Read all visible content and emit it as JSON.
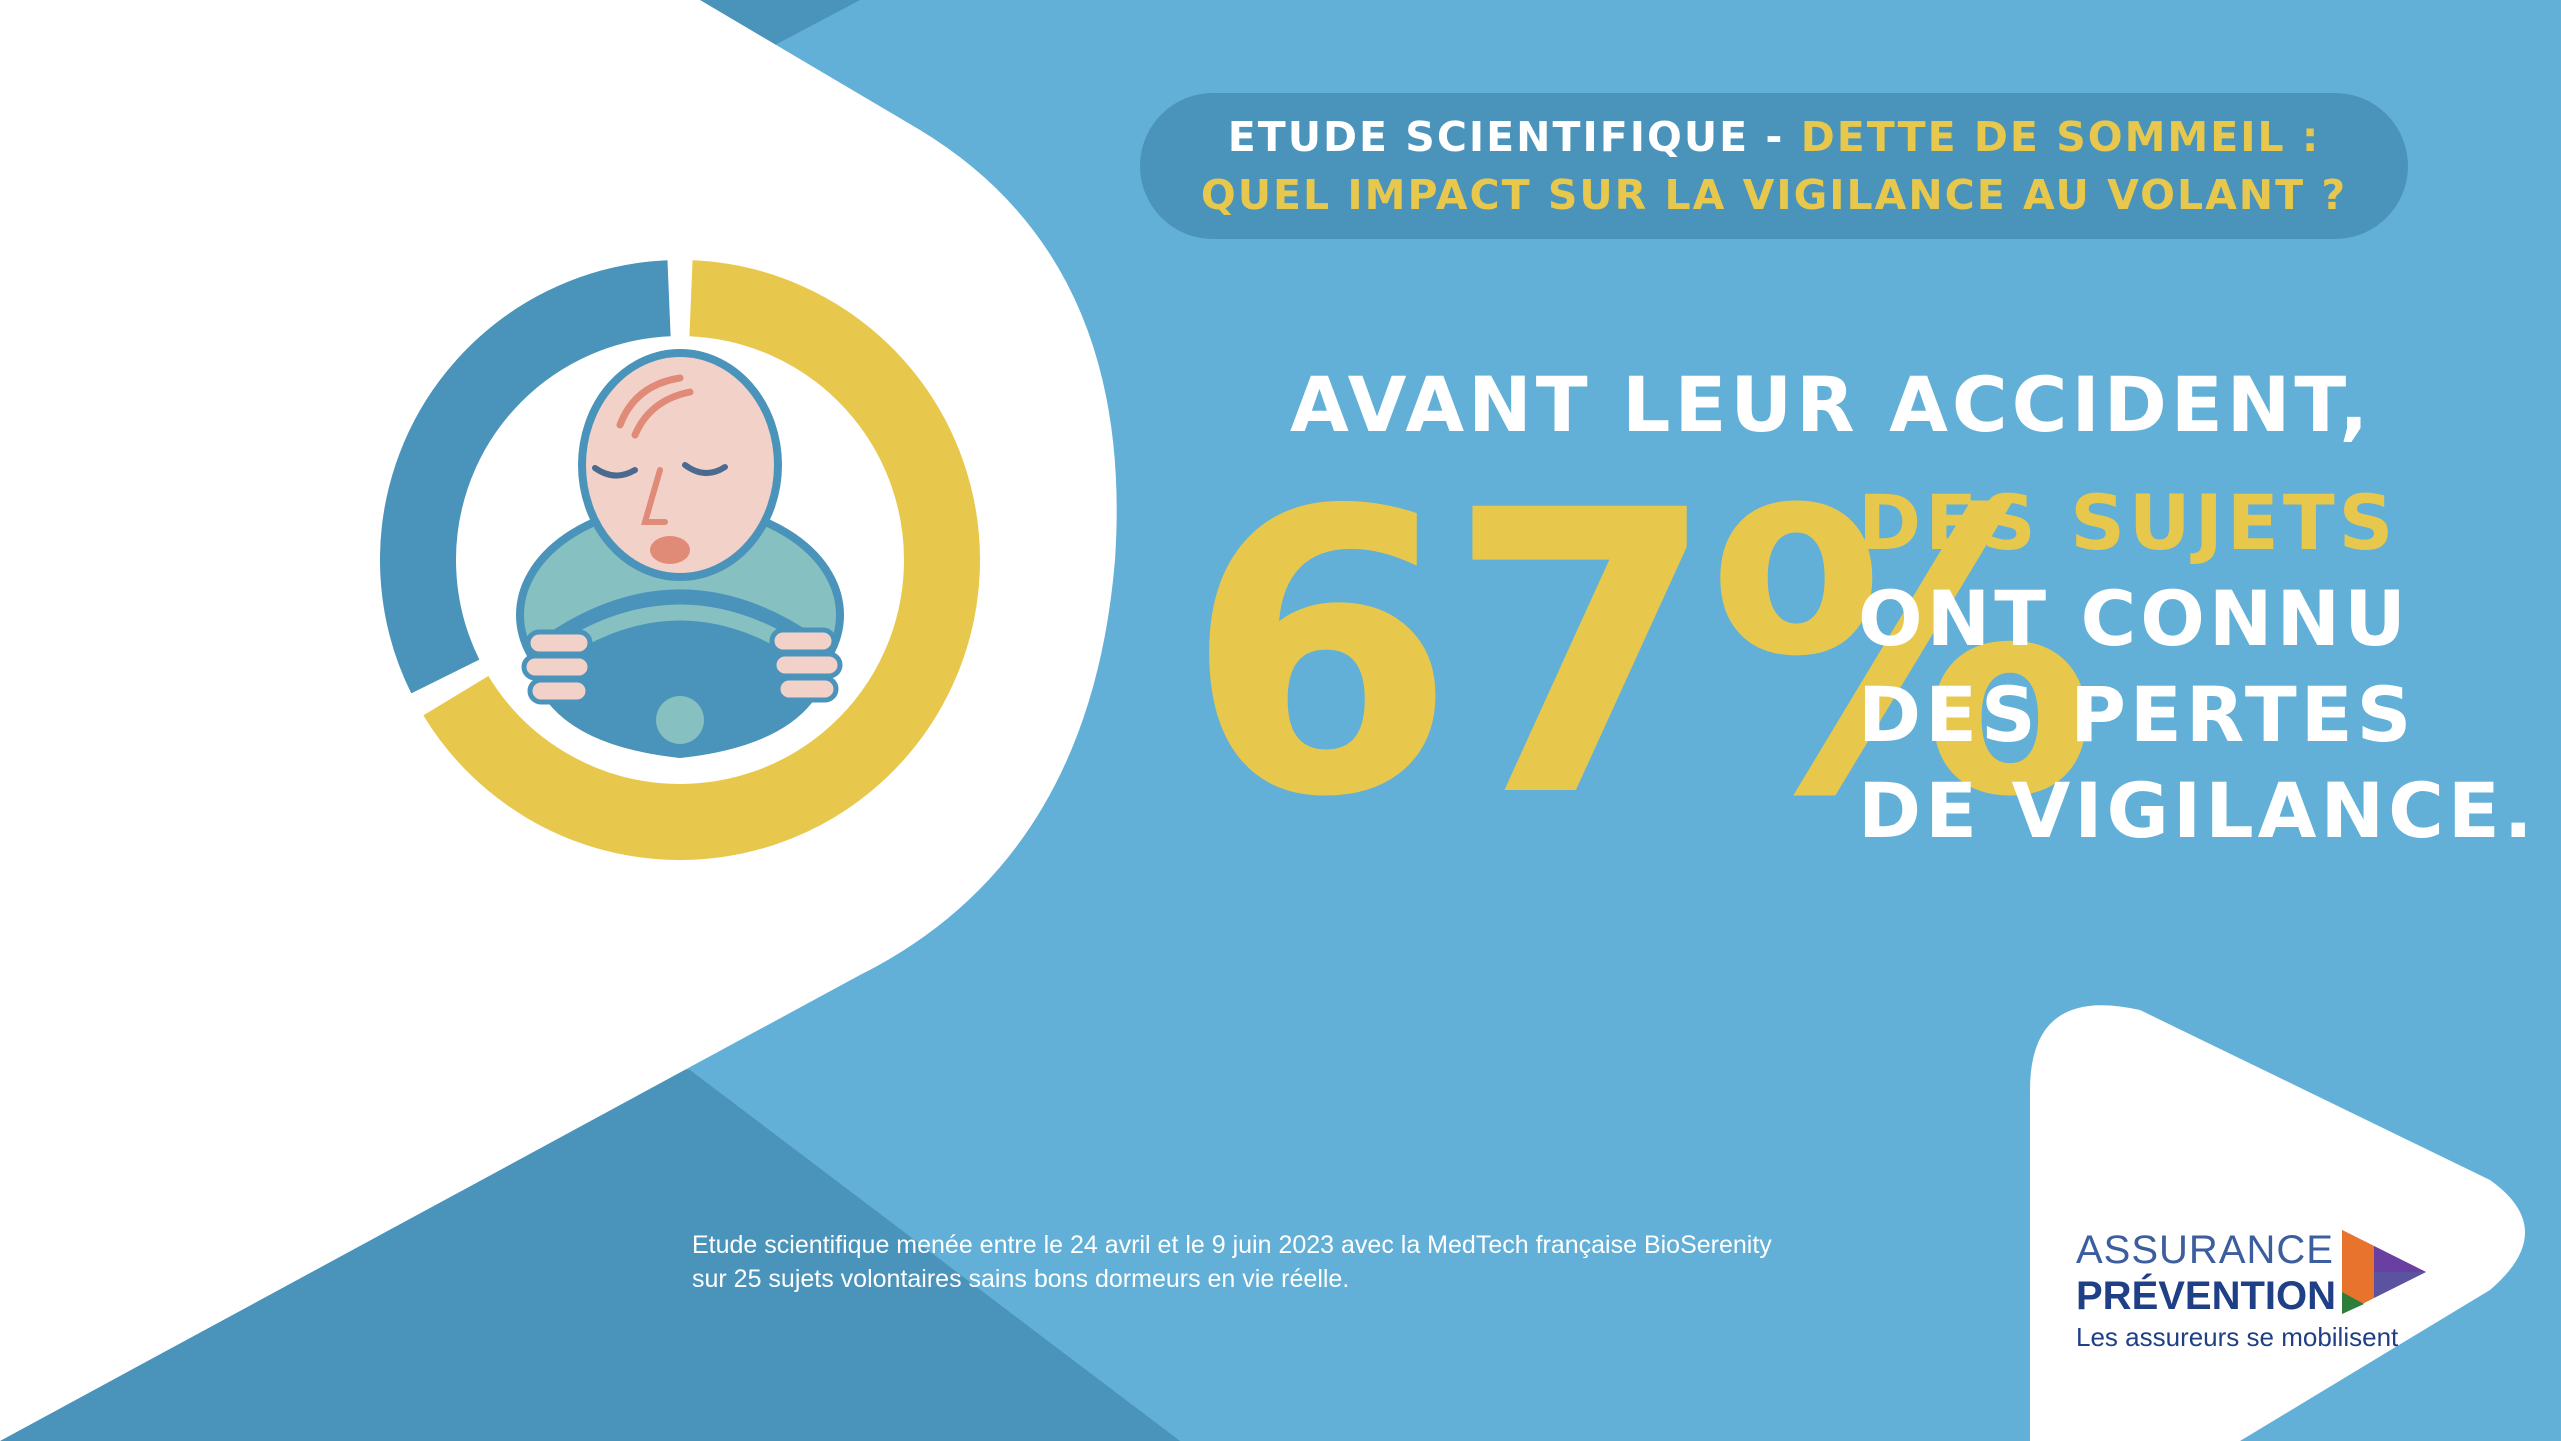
{
  "header": {
    "line1_white": "ETUDE SCIENTIFIQUE - ",
    "line1_yellow": "DETTE DE SOMMEIL :",
    "line2_yellow": "QUEL IMPACT SUR LA VIGILANCE AU VOLANT ?"
  },
  "statistic": {
    "headline": "AVANT LEUR ACCIDENT,",
    "percent_label": "67%",
    "percent_value": 67,
    "subject": "DES SUJETS",
    "line2": "ONT CONNU",
    "line3": "DES PERTES",
    "line4": "DE VIGILANCE."
  },
  "footnote": {
    "line1": "Etude scientifique menée entre le 24 avril et le 9 juin 2023 avec la MedTech française BioSerenity",
    "line2": "sur 25 sujets volontaires sains bons dormeurs en vie réelle."
  },
  "logo": {
    "line1": "ASSURANCE",
    "line2": "PRÉVENTION",
    "tagline": "Les assureurs se mobilisent"
  },
  "colors": {
    "background": "#62b0d7",
    "dark_blue": "#4a93ba",
    "yellow": "#e8c84c",
    "white": "#ffffff",
    "logo_blue": "#1f3f86"
  },
  "icons": {
    "illustration": "sleepy-driver-icon",
    "logo_mark": "play-triangle-icon"
  }
}
